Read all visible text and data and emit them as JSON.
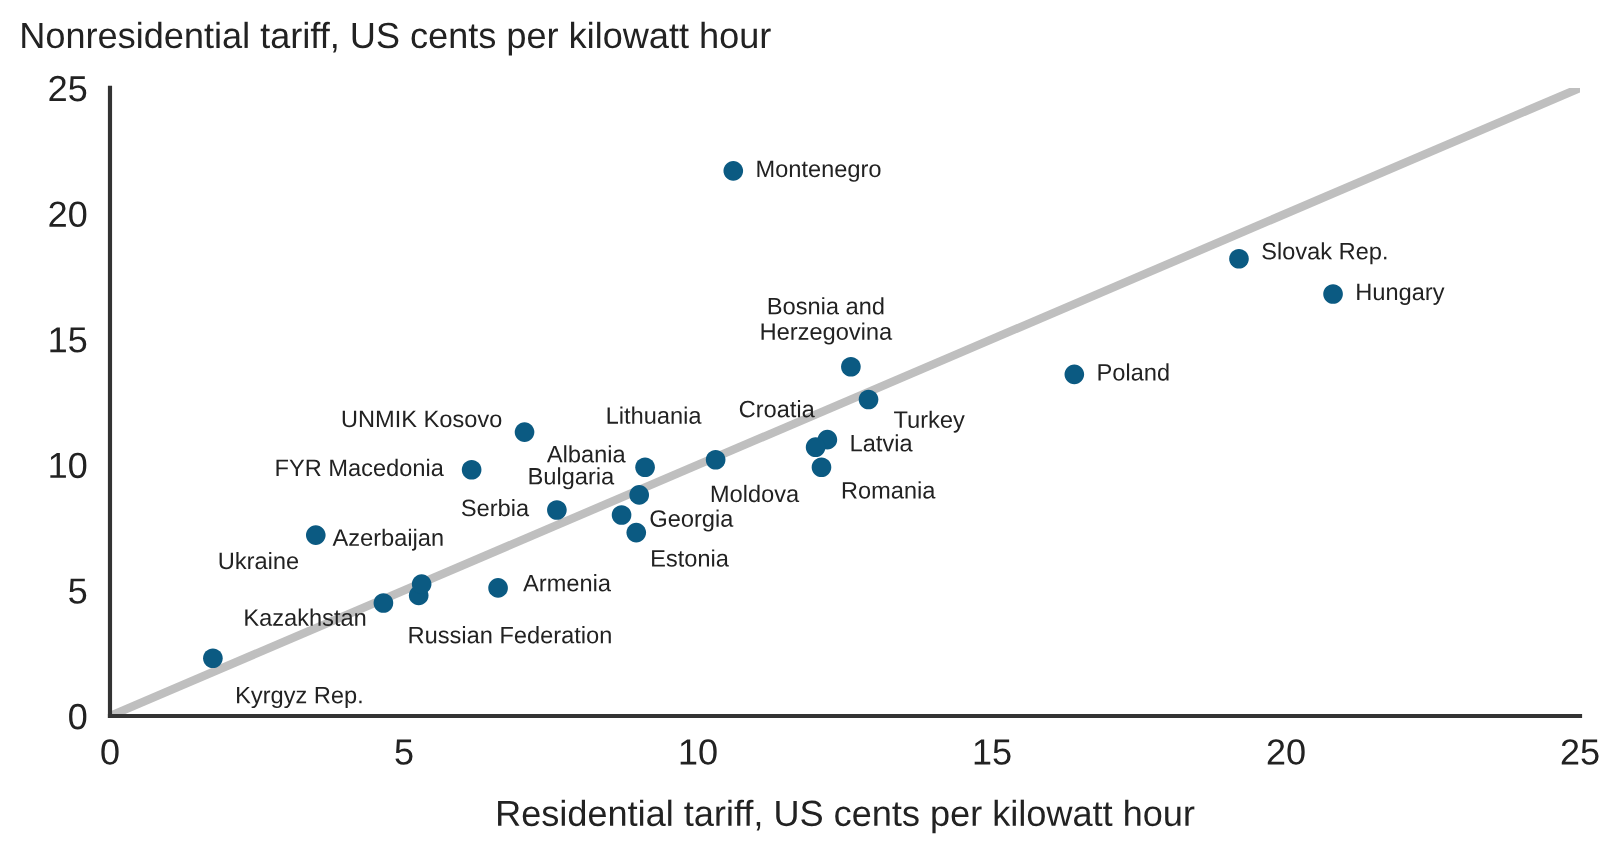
{
  "chart_data": {
    "type": "scatter",
    "xlabel": "Residential tariff, US cents per kilowatt hour",
    "ylabel": "Nonresidential tariff, US cents per kilowatt hour",
    "xlim": [
      0,
      25
    ],
    "ylim": [
      0,
      25
    ],
    "xticks": [
      0,
      5,
      10,
      15,
      20,
      25
    ],
    "yticks": [
      0,
      5,
      10,
      15,
      20,
      25
    ],
    "grid": false,
    "legend": false,
    "series": [
      {
        "type": "line",
        "color": "#bfbfbf",
        "marker": "none",
        "x": [
          0,
          25
        ],
        "values": [
          0,
          25
        ]
      },
      {
        "color": "#0b5a82",
        "marker": "circle",
        "x": [
          10.6,
          19.2,
          20.8,
          16.4,
          12.6,
          12.9,
          12.2,
          12.0,
          12.1,
          10.3,
          9.15,
          9.1,
          9.0,
          8.7,
          8.95,
          7.6,
          6.6,
          5.25,
          5.3,
          4.65,
          3.5,
          6.15,
          7.05,
          1.75
        ],
        "values": [
          21.7,
          18.2,
          16.8,
          13.6,
          13.9,
          12.6,
          11.0,
          10.7,
          9.9,
          10.2,
          null,
          9.9,
          8.8,
          8.0,
          7.3,
          8.2,
          5.1,
          4.8,
          5.25,
          4.5,
          7.2,
          9.8,
          11.3,
          2.3
        ]
      }
    ],
    "annotations": [
      {
        "text": "Montenegro",
        "x": 10.6,
        "y": 21.7
      },
      {
        "text": "Slovak Rep.",
        "x": 19.2,
        "y": 18.2
      },
      {
        "text": "Hungary",
        "x": 20.8,
        "y": 16.8
      },
      {
        "text": "Poland",
        "x": 16.4,
        "y": 13.6
      },
      {
        "text": "Bosnia and\nHerzegovina",
        "x": 12.6,
        "y": 13.9
      },
      {
        "text": "Turkey",
        "x": 12.9,
        "y": 12.6
      },
      {
        "text": "Latvia",
        "x": 12.2,
        "y": 11.0
      },
      {
        "text": "Croatia",
        "x": 12.0,
        "y": 10.7
      },
      {
        "text": "Romania",
        "x": 12.1,
        "y": 9.9
      },
      {
        "text": "Moldova",
        "x": 10.3,
        "y": 10.2
      },
      {
        "text": "Lithuania",
        "x": 9.15,
        "y": 10.0
      },
      {
        "text": "Albania",
        "x": 9.1,
        "y": 9.9
      },
      {
        "text": "Bulgaria",
        "x": 9.0,
        "y": 8.8
      },
      {
        "text": "Georgia",
        "x": 8.7,
        "y": 8.0
      },
      {
        "text": "Estonia",
        "x": 8.95,
        "y": 7.3
      },
      {
        "text": "Serbia",
        "x": 7.6,
        "y": 8.2
      },
      {
        "text": "Armenia",
        "x": 6.6,
        "y": 5.1
      },
      {
        "text": "Russian Federation",
        "x": 5.25,
        "y": 4.8
      },
      {
        "text": "Azerbaijan",
        "x": 5.3,
        "y": 5.25
      },
      {
        "text": "Kazakhstan",
        "x": 4.65,
        "y": 4.5
      },
      {
        "text": "Ukraine",
        "x": 3.5,
        "y": 7.2
      },
      {
        "text": "FYR Macedonia",
        "x": 6.15,
        "y": 9.8
      },
      {
        "text": "UNMIK Kosovo",
        "x": 7.05,
        "y": 11.3
      },
      {
        "text": "Kyrgyz Rep.",
        "x": 1.75,
        "y": 2.3
      }
    ]
  }
}
